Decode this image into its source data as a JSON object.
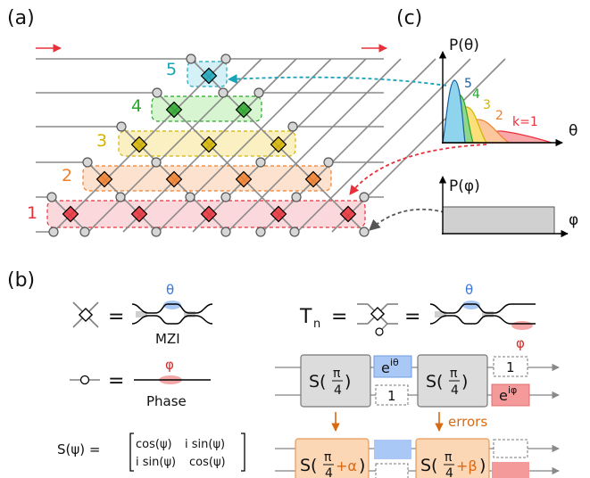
{
  "panel_labels": {
    "a": "(a)",
    "b": "(b)",
    "c": "(c)"
  },
  "mesh": {
    "layer_labels": [
      "1",
      "2",
      "3",
      "4",
      "5"
    ],
    "layer_colors": [
      "#e8303a",
      "#f07f2a",
      "#d4b300",
      "#2aa52a",
      "#18a3b8"
    ],
    "layer_fills": [
      "#fbd8dc",
      "#fde3cf",
      "#fbf0c2",
      "#d6f5d0",
      "#d4f1f7"
    ]
  },
  "plot_theta": {
    "ylabel": "P(θ)",
    "xlabel": "θ",
    "curve_labels": [
      "5",
      "4",
      "3",
      "2",
      "k=1"
    ]
  },
  "plot_phi": {
    "ylabel": "P(φ)",
    "xlabel": "φ"
  },
  "legend": {
    "mzi_eq": "=",
    "mzi_theta": "θ",
    "mzi_caption": "MZI",
    "phase_eq": "=",
    "phase_phi": "φ",
    "phase_caption": "Phase",
    "tn_label": "T",
    "tn_sub": "n",
    "tn_eq1": "=",
    "tn_eq2": "=",
    "tn_theta": "θ",
    "tn_phi": "φ"
  },
  "matrix": {
    "lhs": "S(ψ) =",
    "r1c1": "cos(ψ)",
    "r1c2": "i sin(ψ)",
    "r2c1": "i sin(ψ)",
    "r2c2": "cos(ψ)"
  },
  "circuit": {
    "s_prefix": "S(",
    "s_suffix": ")",
    "pi": "π",
    "four": "4",
    "alpha": "+α",
    "beta": "+β",
    "e": "e",
    "exp_theta": "iθ",
    "exp_phi": "iφ",
    "one": "1",
    "errors": "errors"
  },
  "colors": {
    "red": "#e8303a",
    "blue_bar": "#a9c8f5",
    "red_box": "#f59a9a",
    "orange": "#d86a14",
    "orange_fill": "#fcd7b6",
    "gray_fill": "#dcdcdc",
    "phi_fill": "#d0d0d0"
  }
}
